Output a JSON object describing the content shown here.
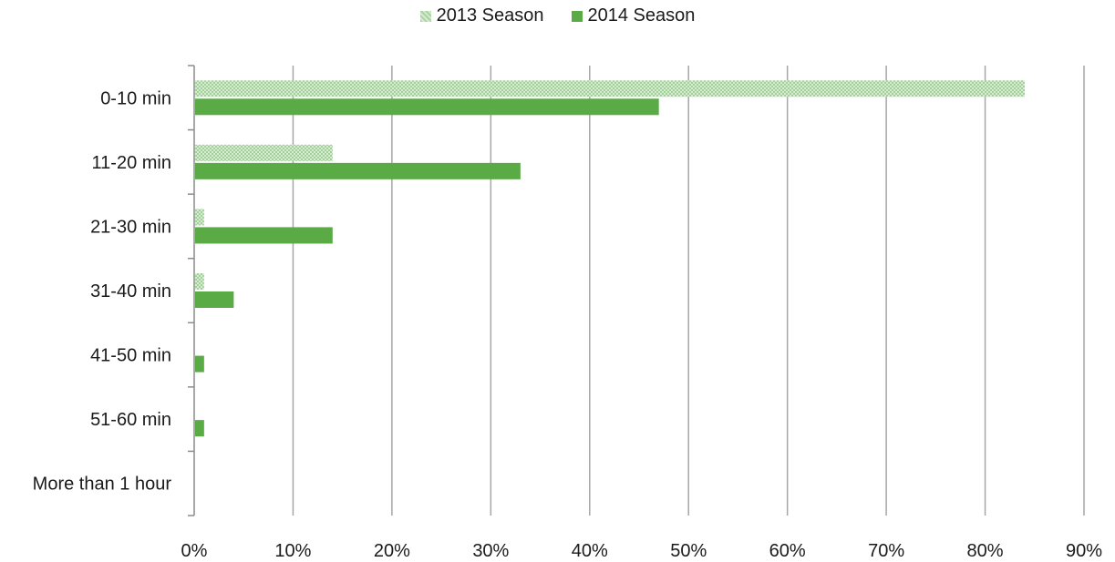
{
  "chart_data": {
    "type": "bar",
    "orientation": "horizontal",
    "categories": [
      "0-10 min",
      "11-20 min",
      "21-30 min",
      "31-40 min",
      "41-50 min",
      "51-60 min",
      "More than 1 hour"
    ],
    "series": [
      {
        "name": "2013 Season",
        "values": [
          84,
          14,
          1,
          1,
          0,
          0,
          0
        ],
        "color": "#b7dcb0",
        "pattern": "dotted"
      },
      {
        "name": "2014 Season",
        "values": [
          47,
          33,
          14,
          4,
          1,
          1,
          0
        ],
        "color": "#5aaa46",
        "pattern": "solid"
      }
    ],
    "title": "",
    "xlabel": "",
    "ylabel": "",
    "xlim": [
      0,
      90
    ],
    "x_ticks": [
      "0%",
      "10%",
      "20%",
      "30%",
      "40%",
      "50%",
      "60%",
      "70%",
      "80%",
      "90%"
    ],
    "grid": "vertical",
    "legend_position": "top-center",
    "gridline_color": "#a6a6a6"
  }
}
